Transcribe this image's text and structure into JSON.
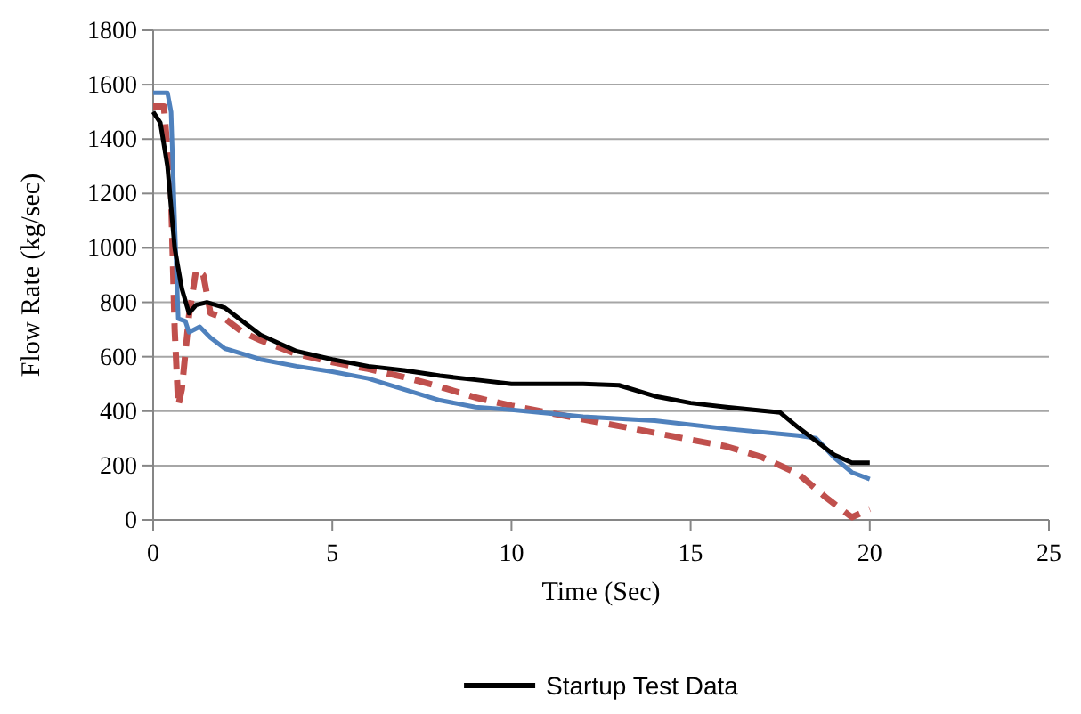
{
  "chart_data": {
    "type": "line",
    "xlabel": "Time (Sec)",
    "ylabel": "Flow Rate (kg/sec)",
    "xlim": [
      0,
      25
    ],
    "xticks": [
      0,
      5,
      10,
      15,
      20,
      25
    ],
    "ylim": [
      0,
      1800
    ],
    "yticks": [
      0,
      200,
      400,
      600,
      800,
      1000,
      1200,
      1400,
      1600,
      1800
    ],
    "grid": "y",
    "legend": "bottom",
    "marker": "none",
    "series": [
      {
        "color": "#c0504d",
        "line_style": "dashed",
        "x": [
          0,
          0.3,
          0.5,
          0.6,
          0.7,
          0.8,
          1.0,
          1.2,
          1.4,
          1.6,
          2,
          2.5,
          3,
          4,
          5,
          6,
          7,
          8,
          9,
          10,
          11,
          12,
          13,
          14,
          15,
          16,
          17,
          18,
          18.8,
          19.5,
          20
        ],
        "values": [
          1520,
          1520,
          1200,
          700,
          420,
          480,
          750,
          920,
          900,
          760,
          740,
          690,
          660,
          610,
          580,
          555,
          525,
          490,
          450,
          420,
          395,
          370,
          345,
          320,
          295,
          270,
          230,
          170,
          80,
          10,
          40
        ]
      },
      {
        "color": "#4f81bd",
        "line_style": "solid",
        "x": [
          0,
          0.4,
          0.5,
          0.6,
          0.7,
          0.9,
          1.0,
          1.3,
          1.6,
          2,
          3,
          4,
          5,
          6,
          7,
          8,
          9,
          10,
          12,
          14,
          16,
          18,
          18.5,
          19,
          19.5,
          20
        ],
        "values": [
          1570,
          1570,
          1500,
          1100,
          740,
          730,
          690,
          710,
          670,
          630,
          590,
          565,
          545,
          520,
          480,
          440,
          415,
          405,
          380,
          365,
          335,
          310,
          300,
          230,
          175,
          150
        ]
      },
      {
        "name": "Startup Test Data",
        "color": "#000000",
        "line_style": "solid",
        "x": [
          0,
          0.2,
          0.4,
          0.6,
          0.8,
          1.0,
          1.2,
          1.5,
          2,
          2.5,
          3,
          4,
          5,
          6,
          7,
          8,
          9,
          10,
          11,
          12,
          13,
          14,
          15,
          16,
          17.5,
          18,
          19,
          19.5,
          20
        ],
        "values": [
          1500,
          1460,
          1300,
          1000,
          850,
          760,
          790,
          800,
          780,
          730,
          680,
          620,
          590,
          565,
          550,
          530,
          515,
          500,
          500,
          500,
          495,
          455,
          430,
          415,
          395,
          340,
          240,
          210,
          210
        ]
      }
    ]
  }
}
